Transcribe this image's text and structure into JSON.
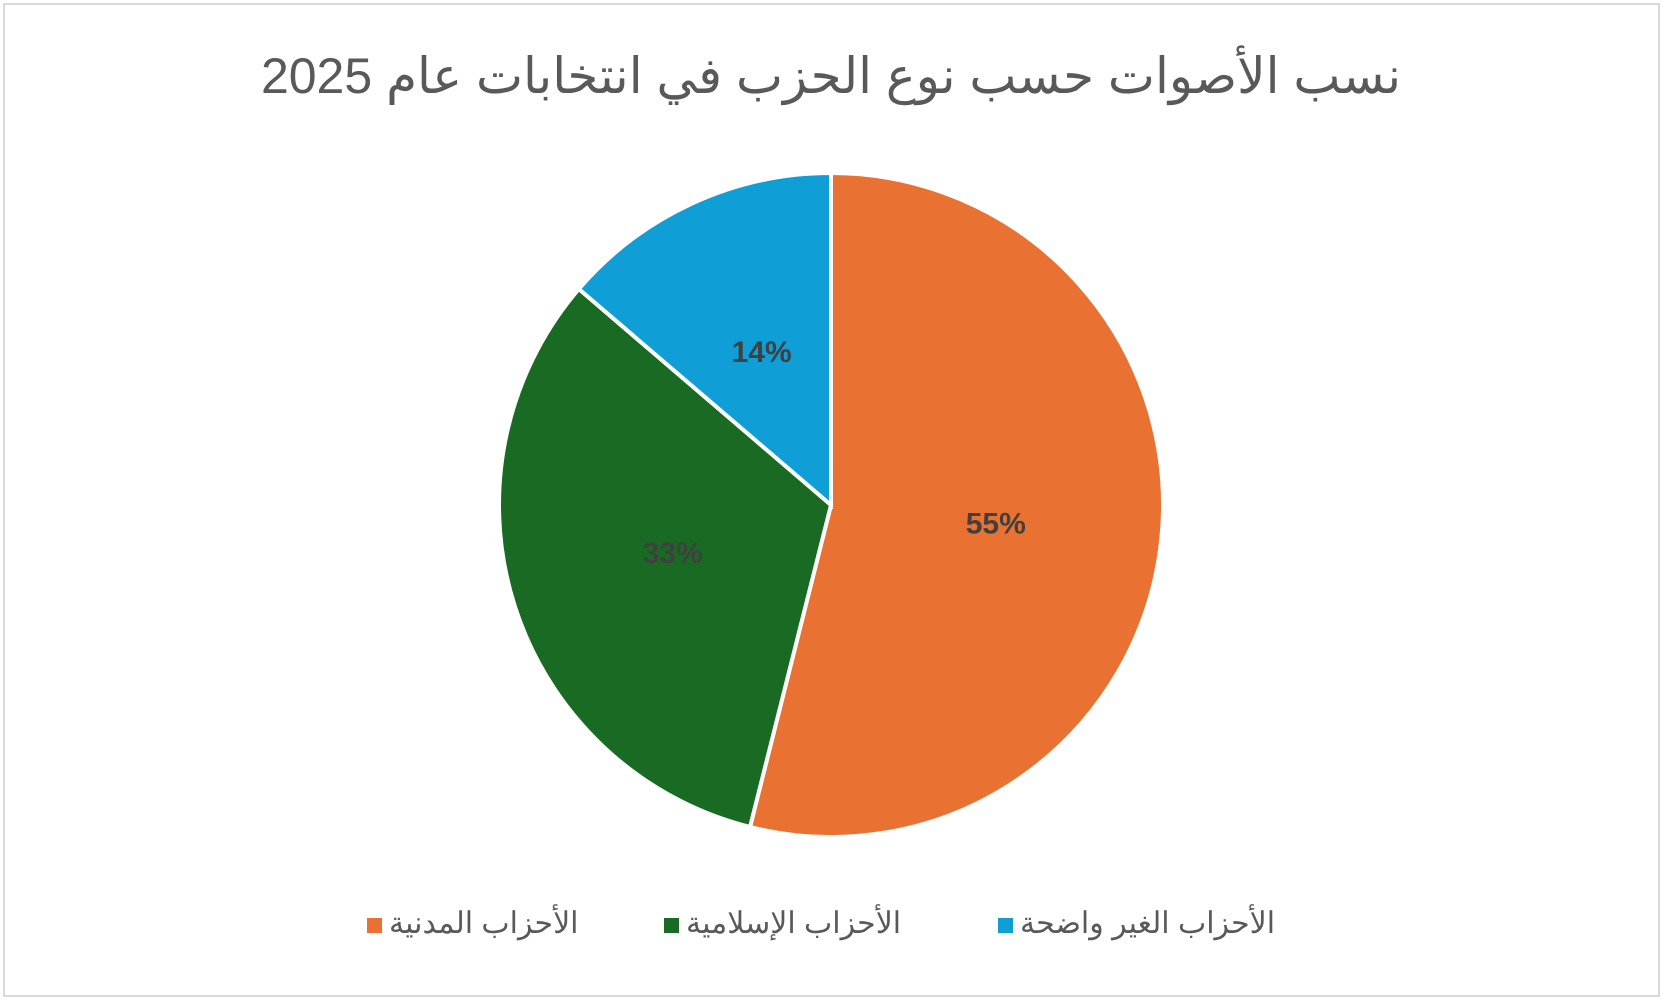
{
  "chart_data": {
    "type": "pie",
    "title": "نسب الأصوات حسب نوع الحزب في انتخابات عام 2025",
    "categories": [
      "الأحزاب المدنية",
      "الأحزاب الإسلامية",
      "الأحزاب الغير واضحة"
    ],
    "values": [
      55,
      33,
      14
    ],
    "value_labels": [
      "55%",
      "33%",
      "14%"
    ],
    "colors": [
      "#E97132",
      "#196B24",
      "#0F9ED5"
    ]
  }
}
